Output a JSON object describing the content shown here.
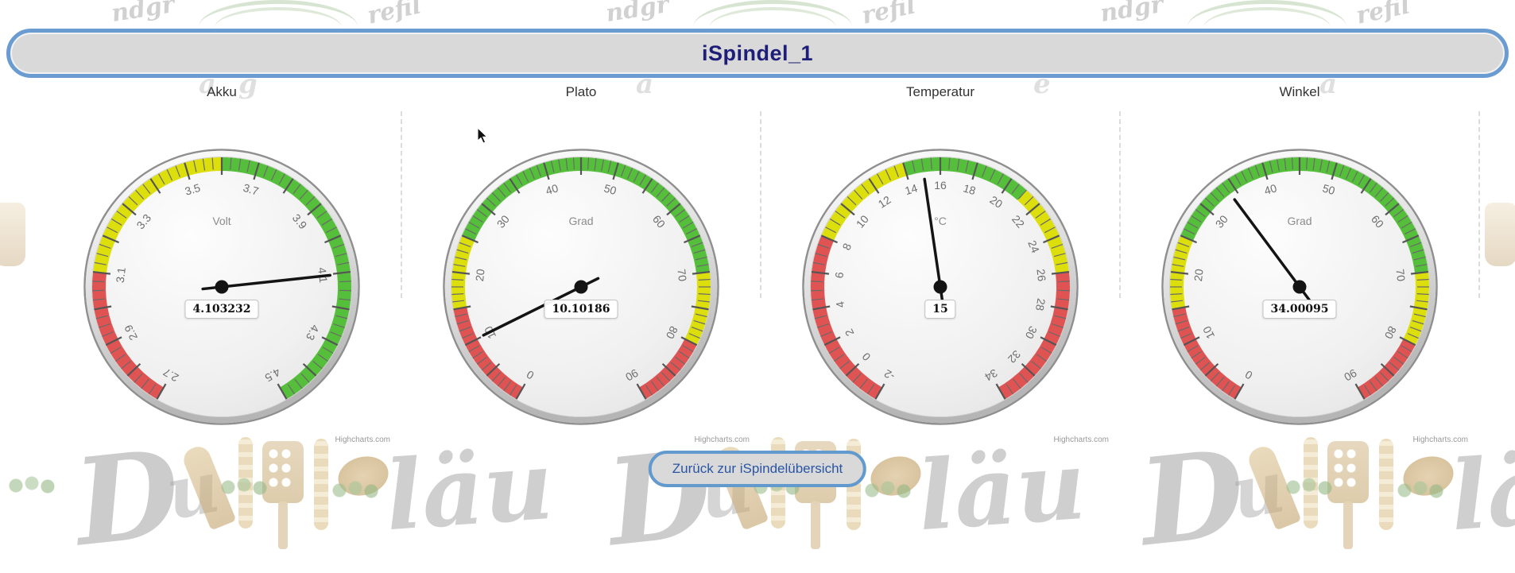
{
  "header": {
    "title": "iSpindel_1"
  },
  "button": {
    "label": "Zurück zur iSpindelübersicht"
  },
  "credits": "Highcharts.com",
  "colors": {
    "band_red": "#DF5353",
    "band_yellow": "#DDDF0D",
    "band_green": "#55BF3B",
    "accent_blue": "#6b9cd1",
    "title_navy": "#1e1e78",
    "button_text_blue": "#2a55a4"
  },
  "chart_data": [
    {
      "type": "gauge",
      "title": "Akku",
      "unit": "Volt",
      "value": 4.103232,
      "value_label": "4.103232",
      "min": 2.7,
      "max": 4.5,
      "start_angle": -150,
      "end_angle": 150,
      "label_step": 0.2,
      "major_tick_step": 0.1,
      "minor_tick_step": 0.025,
      "label_decimals": 1,
      "tick_labels": [
        "2.7",
        "2.9",
        "3.1",
        "3.3",
        "3.5",
        "3.7",
        "3.9",
        "4.1",
        "4.3",
        "4.5"
      ],
      "plot_bands": [
        {
          "from": 2.7,
          "to": 3.1,
          "color": "#DF5353"
        },
        {
          "from": 3.1,
          "to": 3.6,
          "color": "#DDDF0D"
        },
        {
          "from": 3.6,
          "to": 4.5,
          "color": "#55BF3B"
        }
      ]
    },
    {
      "type": "gauge",
      "title": "Plato",
      "unit": "Grad",
      "value": 10.10186,
      "value_label": "10.10186",
      "min": 0,
      "max": 90,
      "start_angle": -150,
      "end_angle": 150,
      "label_step": 10,
      "major_tick_step": 5,
      "minor_tick_step": 1,
      "label_decimals": 0,
      "tick_labels": [
        "0",
        "10",
        "20",
        "30",
        "40",
        "50",
        "60",
        "70",
        "80",
        "90"
      ],
      "plot_bands": [
        {
          "from": 0,
          "to": 15,
          "color": "#DF5353"
        },
        {
          "from": 15,
          "to": 25,
          "color": "#DDDF0D"
        },
        {
          "from": 25,
          "to": 70,
          "color": "#55BF3B"
        },
        {
          "from": 70,
          "to": 80,
          "color": "#DDDF0D"
        },
        {
          "from": 80,
          "to": 90,
          "color": "#DF5353"
        }
      ]
    },
    {
      "type": "gauge",
      "title": "Temperatur",
      "unit": "°C",
      "value": 15,
      "value_label": "15",
      "min": -2,
      "max": 34,
      "start_angle": -150,
      "end_angle": 150,
      "label_step": 2,
      "major_tick_step": 2,
      "minor_tick_step": 0.5,
      "label_decimals": 0,
      "tick_labels": [
        "-2",
        "0",
        "2",
        "4",
        "6",
        "8",
        "10",
        "12",
        "14",
        "16",
        "18",
        "20",
        "22",
        "24",
        "26",
        "28",
        "30",
        "32",
        "34"
      ],
      "plot_bands": [
        {
          "from": -2,
          "to": 8,
          "color": "#DF5353"
        },
        {
          "from": 8,
          "to": 14,
          "color": "#DDDF0D"
        },
        {
          "from": 14,
          "to": 21,
          "color": "#55BF3B"
        },
        {
          "from": 21,
          "to": 26,
          "color": "#DDDF0D"
        },
        {
          "from": 26,
          "to": 34,
          "color": "#DF5353"
        }
      ]
    },
    {
      "type": "gauge",
      "title": "Winkel",
      "unit": "Grad",
      "value": 34.00095,
      "value_label": "34.00095",
      "min": 0,
      "max": 90,
      "start_angle": -150,
      "end_angle": 150,
      "label_step": 10,
      "major_tick_step": 5,
      "minor_tick_step": 1,
      "label_decimals": 0,
      "tick_labels": [
        "0",
        "10",
        "20",
        "30",
        "40",
        "50",
        "60",
        "70",
        "80",
        "90"
      ],
      "plot_bands": [
        {
          "from": 0,
          "to": 15,
          "color": "#DF5353"
        },
        {
          "from": 15,
          "to": 25,
          "color": "#DDDF0D"
        },
        {
          "from": 25,
          "to": 70,
          "color": "#55BF3B"
        },
        {
          "from": 70,
          "to": 80,
          "color": "#DDDF0D"
        },
        {
          "from": 80,
          "to": 90,
          "color": "#DF5353"
        }
      ]
    }
  ],
  "watermark": {
    "top_fragments": [
      "ndgr",
      "refil"
    ],
    "header_peek_letters": [
      "a",
      "g",
      "a",
      "e"
    ],
    "bottom_letters": [
      "D",
      "u",
      "läu"
    ],
    "colors": {
      "wreath_outer": "#b7cfad",
      "wreath_inner": "#c6d8bc"
    }
  }
}
